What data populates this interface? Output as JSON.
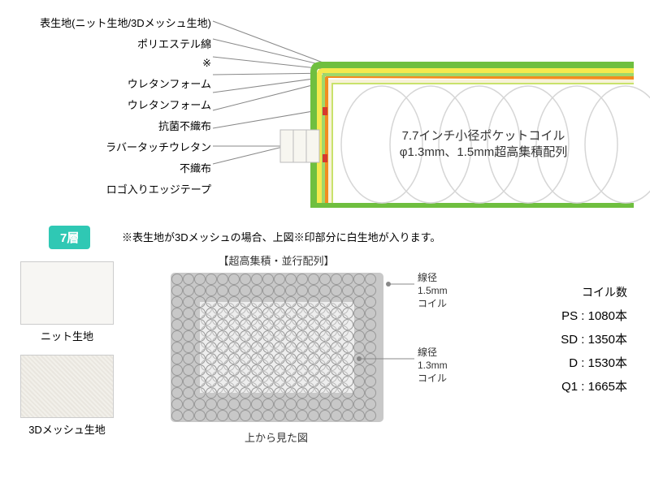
{
  "layers": {
    "labels": [
      "表生地(ニット生地/3Dメッシュ生地)",
      "ポリエステル綿",
      "※",
      "ウレタンフォーム",
      "ウレタンフォーム",
      "抗菌不織布",
      "ラバータッチウレタン",
      "不織布",
      "ロゴ入りエッジテープ"
    ],
    "colors": {
      "outer": "#6fbf3f",
      "yellow": "#f5e94d",
      "green2": "#9fd86b",
      "orange": "#f28c1e",
      "cream": "#f7f2d8",
      "lime": "#c9e26b",
      "red": "#d63a2f",
      "edge": "#d6d0b8"
    }
  },
  "cross": {
    "line1": "7.7インチ小径ポケットコイル",
    "line2": "φ1.3mm、1.5mm超高集積配列"
  },
  "badge": "7層",
  "note": "※表生地が3Dメッシュの場合、上図※印部分に白生地が入ります。",
  "swatches": {
    "knit": "ニット生地",
    "mesh": "3Dメッシュ生地"
  },
  "topview": {
    "title": "【超高集積・並行配列】",
    "caption": "上から見た図",
    "outer": {
      "label1": "線径",
      "label2": "1.5mm",
      "label3": "コイル"
    },
    "inner": {
      "label1": "線径",
      "label2": "1.3mm",
      "label3": "コイル"
    }
  },
  "coils": {
    "title": "コイル数",
    "rows": [
      {
        "k": "PS",
        "v": "1080本"
      },
      {
        "k": "SD",
        "v": "1350本"
      },
      {
        "k": "D",
        "v": "1530本"
      },
      {
        "k": "Q1",
        "v": "1665本"
      }
    ]
  }
}
